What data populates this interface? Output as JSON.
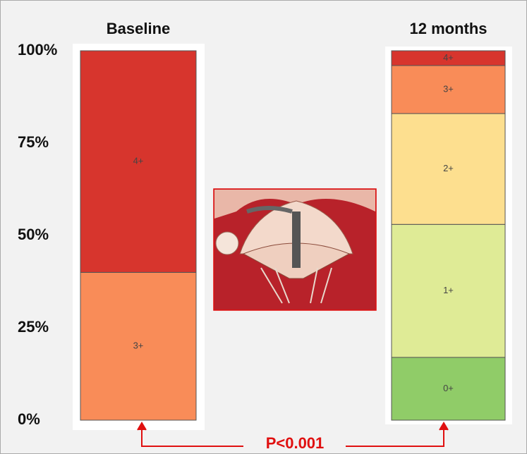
{
  "chart_data": {
    "type": "stacked_bar",
    "categories": [
      "Baseline",
      "12 months"
    ],
    "series": [
      {
        "name": "0+",
        "color": "#90cc68",
        "values": [
          null,
          17
        ]
      },
      {
        "name": "1+",
        "color": "#dfeb96",
        "values": [
          null,
          36
        ]
      },
      {
        "name": "2+",
        "color": "#fddf8f",
        "values": [
          null,
          30
        ]
      },
      {
        "name": "3+",
        "color": "#f98c58",
        "values": [
          40,
          13
        ]
      },
      {
        "name": "4+",
        "color": "#d7352d",
        "values": [
          60,
          4
        ]
      }
    ],
    "ylim": [
      0,
      100
    ],
    "yticks": [
      {
        "value": 0,
        "label": "0%"
      },
      {
        "value": 25,
        "label": "25%"
      },
      {
        "value": 50,
        "label": "50%"
      },
      {
        "value": 75,
        "label": "75%"
      },
      {
        "value": 100,
        "label": "100%"
      }
    ],
    "annotation": "P<0.001"
  }
}
